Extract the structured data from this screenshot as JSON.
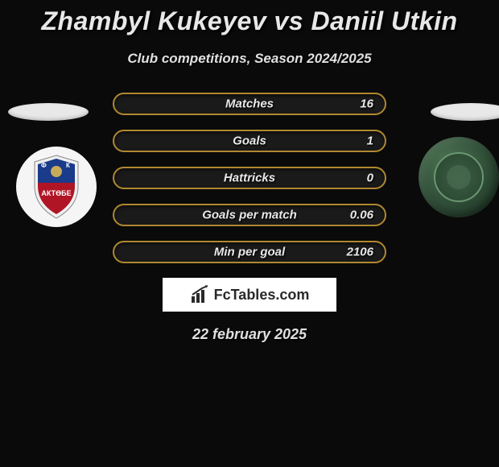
{
  "title": "Zhambyl Kukeyev vs Daniil Utkin",
  "subtitle": "Club competitions, Season 2024/2025",
  "date": "22 february 2025",
  "brand": "FcTables.com",
  "row_border_color": "#b08830",
  "background_color": "#0a0a0a",
  "text_color": "#e8e8e8",
  "stats": [
    {
      "label": "Matches",
      "value": "16"
    },
    {
      "label": "Goals",
      "value": "1"
    },
    {
      "label": "Hattricks",
      "value": "0"
    },
    {
      "label": "Goals per match",
      "value": "0.06"
    },
    {
      "label": "Min per goal",
      "value": "2106"
    }
  ],
  "badges": {
    "left": {
      "bg_color": "#f5f5f5",
      "shield_top_color": "#1a3a8a",
      "shield_bottom_color": "#b01525",
      "text": "АКТӨБЕ",
      "name": "aktobe-badge"
    },
    "right": {
      "bg_color": "#2d4a35",
      "accent_color": "#6a9670",
      "name": "terek-badge"
    }
  }
}
